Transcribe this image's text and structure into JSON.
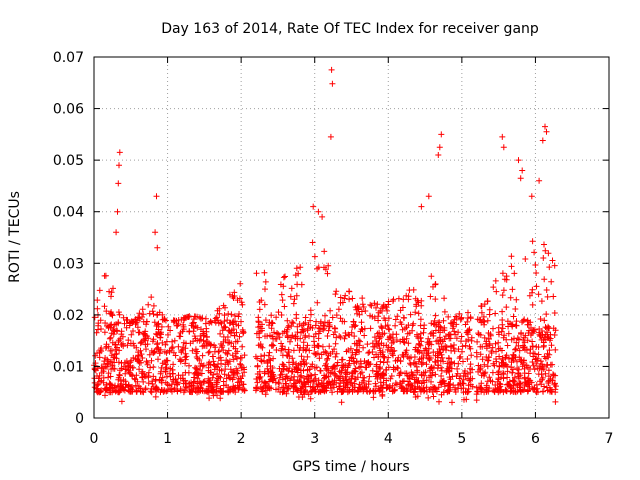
{
  "chart_data": {
    "type": "scatter",
    "title": "Day 163 of 2014, Rate Of TEC Index for receiver ganp",
    "xlabel": "GPS time / hours",
    "ylabel": "ROTI / TECUs",
    "xlim": [
      0,
      7
    ],
    "ylim": [
      0,
      0.07
    ],
    "xticks": [
      0,
      1,
      2,
      3,
      4,
      5,
      6,
      7
    ],
    "yticks": [
      0,
      0.01,
      0.02,
      0.03,
      0.04,
      0.05,
      0.06,
      0.07
    ],
    "xtick_labels": [
      "0",
      "1",
      "2",
      "3",
      "4",
      "5",
      "6",
      "7"
    ],
    "ytick_labels": [
      "0",
      "0.01",
      "0.02",
      "0.03",
      "0.04",
      "0.05",
      "0.06",
      "0.07"
    ],
    "grid": true,
    "marker": "+",
    "color": "#ff0000",
    "series": [
      {
        "name": "ROTI",
        "segments": [
          [
            0.0,
            2.05
          ],
          [
            2.2,
            5.15
          ],
          [
            5.2,
            6.28
          ]
        ],
        "bulk_range": [
          0.005,
          0.019
        ],
        "envelope_points": [
          [
            0.0,
            0.022
          ],
          [
            0.1,
            0.026
          ],
          [
            0.2,
            0.03
          ],
          [
            0.3,
            0.022
          ],
          [
            0.5,
            0.018
          ],
          [
            0.8,
            0.024
          ],
          [
            1.0,
            0.018
          ],
          [
            1.3,
            0.02
          ],
          [
            1.6,
            0.019
          ],
          [
            1.8,
            0.024
          ],
          [
            2.0,
            0.028
          ],
          [
            2.3,
            0.03
          ],
          [
            2.5,
            0.026
          ],
          [
            2.7,
            0.03
          ],
          [
            2.9,
            0.034
          ],
          [
            3.1,
            0.036
          ],
          [
            3.3,
            0.026
          ],
          [
            3.6,
            0.024
          ],
          [
            3.9,
            0.022
          ],
          [
            4.2,
            0.024
          ],
          [
            4.4,
            0.026
          ],
          [
            4.6,
            0.03
          ],
          [
            4.8,
            0.022
          ],
          [
            5.0,
            0.02
          ],
          [
            5.3,
            0.022
          ],
          [
            5.5,
            0.028
          ],
          [
            5.7,
            0.032
          ],
          [
            5.9,
            0.034
          ],
          [
            6.1,
            0.036
          ],
          [
            6.25,
            0.03
          ]
        ],
        "peaks": [
          [
            0.35,
            0.0515
          ],
          [
            0.34,
            0.049
          ],
          [
            0.33,
            0.0455
          ],
          [
            0.32,
            0.04
          ],
          [
            0.3,
            0.036
          ],
          [
            0.85,
            0.043
          ],
          [
            0.83,
            0.036
          ],
          [
            0.86,
            0.033
          ],
          [
            3.23,
            0.0675
          ],
          [
            3.24,
            0.0648
          ],
          [
            3.22,
            0.0545
          ],
          [
            2.98,
            0.041
          ],
          [
            3.05,
            0.04
          ],
          [
            3.1,
            0.039
          ],
          [
            4.72,
            0.055
          ],
          [
            4.7,
            0.0525
          ],
          [
            4.68,
            0.051
          ],
          [
            4.55,
            0.043
          ],
          [
            4.45,
            0.041
          ],
          [
            5.55,
            0.0545
          ],
          [
            5.57,
            0.0525
          ],
          [
            5.77,
            0.05
          ],
          [
            5.82,
            0.048
          ],
          [
            5.8,
            0.0465
          ],
          [
            6.13,
            0.0565
          ],
          [
            6.15,
            0.0555
          ],
          [
            6.1,
            0.0538
          ],
          [
            6.05,
            0.046
          ],
          [
            5.95,
            0.043
          ]
        ]
      }
    ]
  }
}
